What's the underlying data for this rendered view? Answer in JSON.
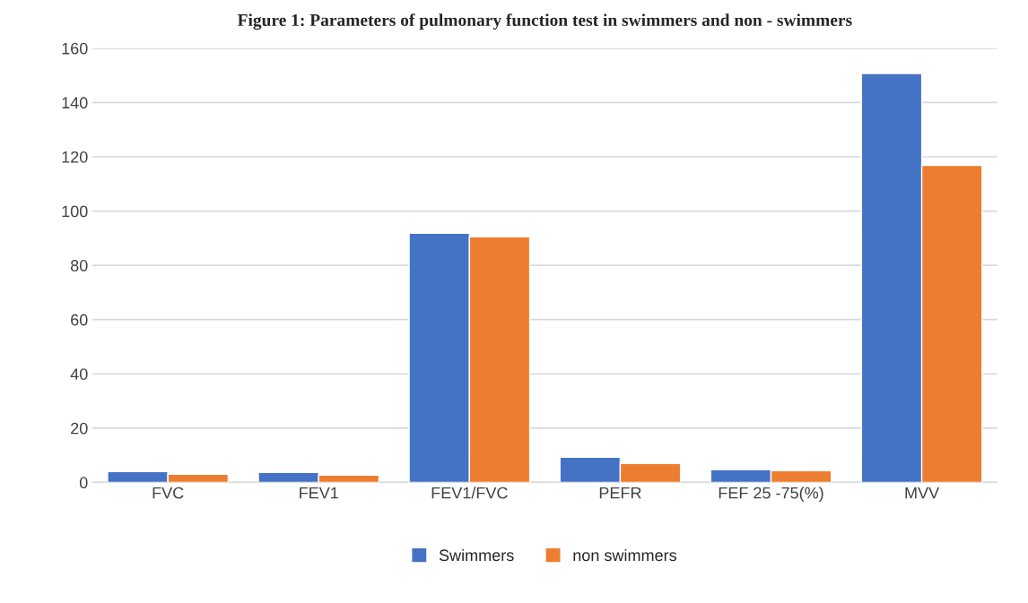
{
  "chart_data": {
    "type": "bar",
    "title": "Figure 1: Parameters of pulmonary function test in swimmers and non - swimmers",
    "categories": [
      "FVC",
      "FEV1",
      "FEV1/FVC",
      "PEFR",
      "FEF 25 -75(%)",
      "MVV"
    ],
    "series": [
      {
        "name": "Swimmers",
        "color": "#4472c4",
        "values": [
          4,
          3.7,
          91.8,
          9.3,
          4.7,
          150.7
        ]
      },
      {
        "name": "non swimmers",
        "color": "#ed7d31",
        "values": [
          3,
          2.7,
          90.5,
          7,
          4.3,
          116.8
        ]
      }
    ],
    "ylim": [
      0,
      160
    ],
    "yticks": [
      0,
      20,
      40,
      60,
      80,
      100,
      120,
      140,
      160
    ],
    "grid": "y",
    "legend": "bottom"
  }
}
